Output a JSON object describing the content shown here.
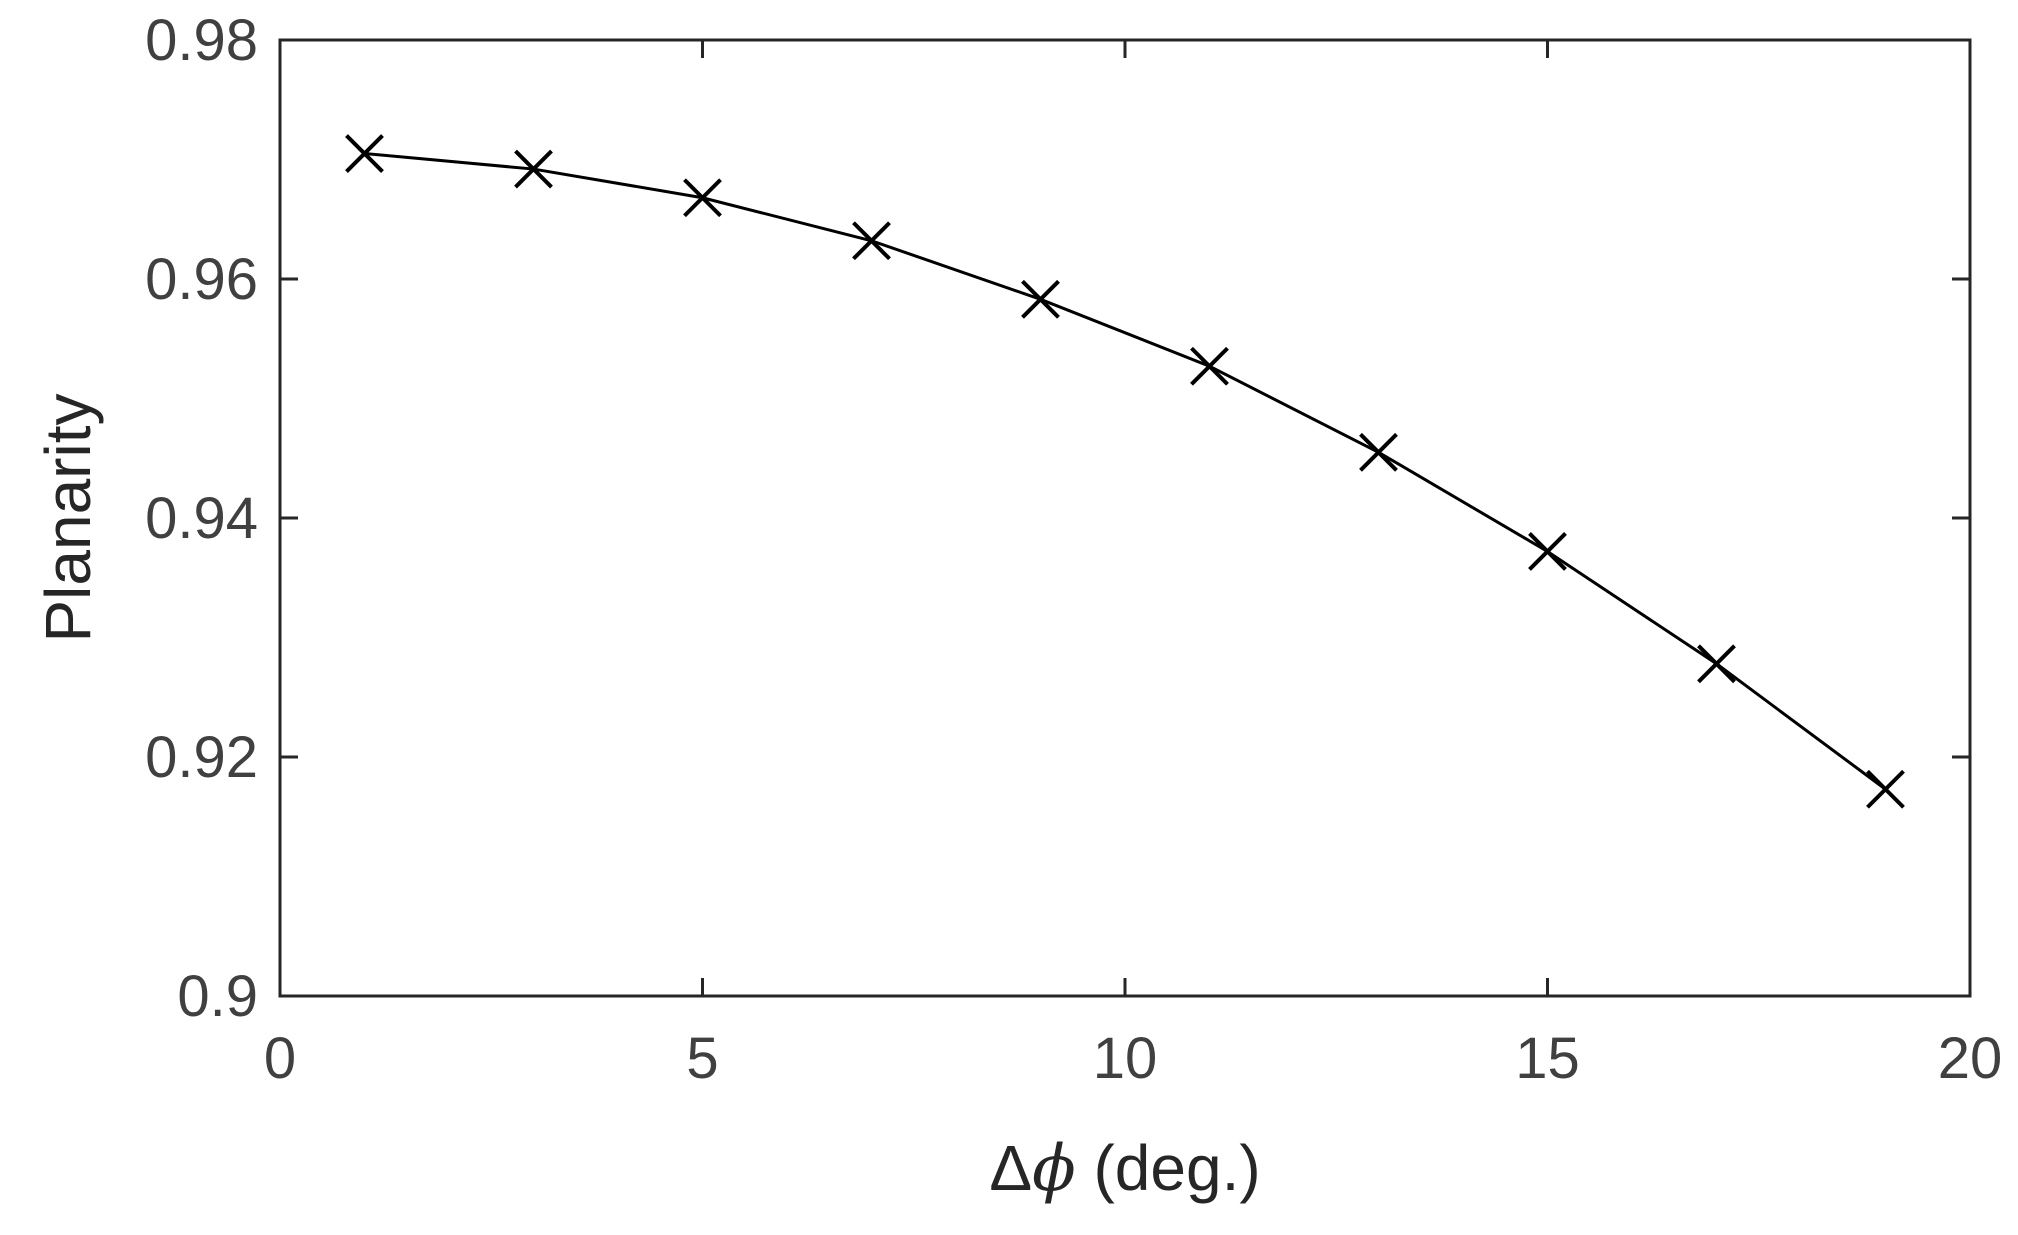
{
  "chart_data": {
    "type": "line",
    "marker": "x",
    "xlabel_prefix": "Δ",
    "xlabel_symbol": "ϕ",
    "xlabel_suffix": " (deg.)",
    "ylabel": "Planarity",
    "xlim": [
      0,
      20
    ],
    "ylim": [
      0.9,
      0.98
    ],
    "xticks": [
      0,
      5,
      10,
      15,
      20
    ],
    "xtick_labels": [
      "0",
      "5",
      "10",
      "15",
      "20"
    ],
    "yticks": [
      0.9,
      0.92,
      0.94,
      0.96,
      0.98
    ],
    "ytick_labels": [
      "0.9",
      "0.92",
      "0.94",
      "0.96",
      "0.98"
    ],
    "grid": false,
    "series": [
      {
        "x": [
          1,
          3,
          5,
          7,
          9,
          11,
          13,
          15,
          17,
          19
        ],
        "y": [
          0.9705,
          0.9692,
          0.9668,
          0.9632,
          0.9583,
          0.9527,
          0.9455,
          0.9372,
          0.9278,
          0.9173
        ],
        "color": "#000000"
      }
    ]
  }
}
